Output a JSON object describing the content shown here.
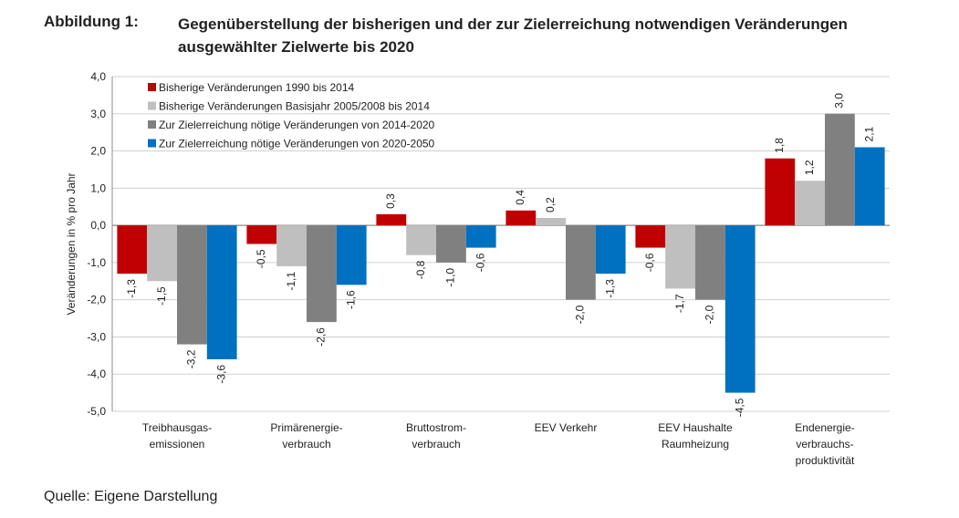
{
  "figure": {
    "label": "Abbildung 1:",
    "title": "Gegenüberstellung der bisherigen und der zur Zielerreichung notwendigen Veränderungen ausgewählter Zielwerte bis 2020",
    "source": "Quelle: Eigene Darstellung"
  },
  "chart_data": {
    "type": "bar",
    "title": "Gegenüberstellung der bisherigen und der zur Zielerreichung notwendigen Veränderungen ausgewählter Zielwerte bis 2020",
    "xlabel": "",
    "ylabel": "Veränderungen in % pro Jahr",
    "ylim": [
      -5.0,
      4.0
    ],
    "yticks": [
      4.0,
      3.0,
      2.0,
      1.0,
      0.0,
      -1.0,
      -2.0,
      -3.0,
      -4.0,
      -5.0
    ],
    "ytick_labels": [
      "4,0",
      "3,0",
      "2,0",
      "1,0",
      "0,0",
      "-1,0",
      "-2,0",
      "-3,0",
      "-4,0",
      "-5,0"
    ],
    "grid": true,
    "legend_position": "top-left",
    "categories": [
      [
        "Treibhausgas-",
        "emissionen"
      ],
      [
        "Primärenergie-",
        "verbrauch"
      ],
      [
        "Bruttostrom-",
        "verbrauch"
      ],
      [
        "EEV Verkehr"
      ],
      [
        "EEV Haushalte",
        "Raumheizung"
      ],
      [
        "Endenergie-",
        "verbrauchs-",
        "produktivität"
      ]
    ],
    "series": [
      {
        "name": "Bisherige Veränderungen 1990 bis 2014",
        "color": "#c00000",
        "values": [
          -1.3,
          -0.5,
          0.3,
          0.4,
          -0.6,
          1.8
        ],
        "labels": [
          "-1,3",
          "-0,5",
          "0,3",
          "0,4",
          "-0,6",
          "1,8"
        ]
      },
      {
        "name": "Bisherige Veränderungen Basisjahr 2005/2008 bis 2014",
        "color": "#bfbfbf",
        "values": [
          -1.5,
          -1.1,
          -0.8,
          0.2,
          -1.7,
          1.2
        ],
        "labels": [
          "-1,5",
          "-1,1",
          "-0,8",
          "0,2",
          "-1,7",
          "1,2"
        ]
      },
      {
        "name": "Zur Zielerreichung nötige Veränderungen von 2014-2020",
        "color": "#808080",
        "values": [
          -3.2,
          -2.6,
          -1.0,
          -2.0,
          -2.0,
          3.0
        ],
        "labels": [
          "-3,2",
          "-2,6",
          "-1,0",
          "-2,0",
          "-2,0",
          "3,0"
        ]
      },
      {
        "name": "Zur Zielerreichung nötige Veränderungen von 2020-2050",
        "color": "#0070c0",
        "values": [
          -3.6,
          -1.6,
          -0.6,
          -1.3,
          -4.5,
          2.1
        ],
        "labels": [
          "-3,6",
          "-1,6",
          "-0,6",
          "-1,3",
          "-4,5",
          "2,1"
        ]
      }
    ]
  }
}
